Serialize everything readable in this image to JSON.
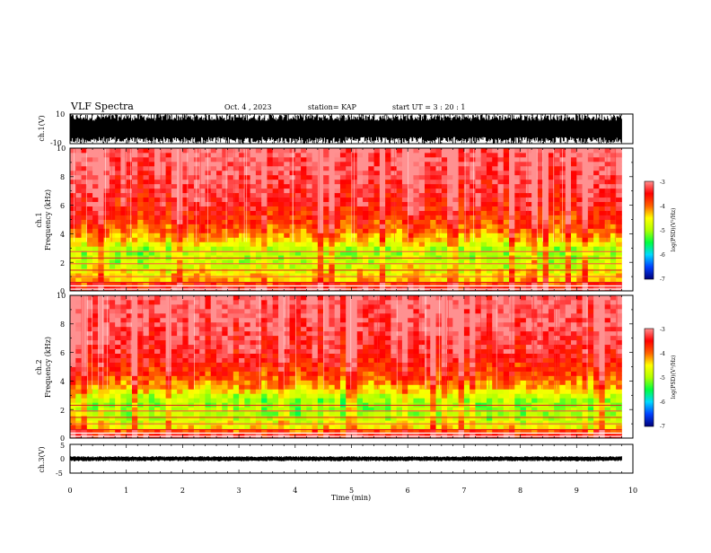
{
  "header": {
    "title": "VLF Spectra",
    "date": "Oct. 4 , 2023",
    "station": "station= KAP",
    "start": "start UT =  3 : 20 : 1"
  },
  "panels": {
    "ch1_wave": {
      "ylabel": "ch.1(V)",
      "yticks": [
        "10",
        "-10"
      ]
    },
    "ch1_spec": {
      "ylabel_top": "ch.1",
      "ylabel_bottom": "Frequency (kHz)",
      "yticks": [
        "10",
        "8",
        "6",
        "4",
        "2",
        "0"
      ]
    },
    "ch2_spec": {
      "ylabel_top": "ch.2",
      "ylabel_bottom": "Frequency (kHz)",
      "yticks": [
        "10",
        "8",
        "6",
        "4",
        "2",
        "0"
      ]
    },
    "ch3_wave": {
      "ylabel": "ch.3(V)",
      "yticks": [
        "5",
        "0",
        "-5"
      ]
    }
  },
  "xaxis": {
    "label": "Time (min)",
    "ticks": [
      "0",
      "1",
      "2",
      "3",
      "4",
      "5",
      "6",
      "7",
      "8",
      "9",
      "10"
    ]
  },
  "colorbar": {
    "label": "log(PSD)(V²/Hz)",
    "ticks": [
      "-3",
      "-4",
      "-5",
      "-6",
      "-7"
    ],
    "colors": [
      "#00007a",
      "#0040ff",
      "#00d8ff",
      "#00ff40",
      "#b0ff00",
      "#ffff00",
      "#ff6000",
      "#ff0000",
      "#ff9090",
      "#ffffff"
    ]
  },
  "chart_data": [
    {
      "type": "line",
      "name": "ch.1 waveform",
      "xlabel": "Time (min)",
      "ylabel": "ch.1(V)",
      "xlim": [
        0,
        10
      ],
      "ylim": [
        -10,
        10
      ],
      "x_range_data": [
        0,
        9.8
      ],
      "envelope": {
        "min_v": -10,
        "max_v": 10
      }
    },
    {
      "type": "heatmap",
      "name": "ch.1 spectrogram",
      "xlabel": "Time (min)",
      "ylabel": "Frequency (kHz)",
      "xlim": [
        0,
        10
      ],
      "ylim": [
        0,
        10
      ],
      "x_range_data": [
        0,
        9.8
      ],
      "colorbar_range": [
        -7,
        -3
      ],
      "frequency_profile_log_psd": [
        {
          "f_khz": 0.25,
          "log_psd": -3.4
        },
        {
          "f_khz": 0.75,
          "log_psd": -4.3
        },
        {
          "f_khz": 1.25,
          "log_psd": -4.5
        },
        {
          "f_khz": 1.75,
          "log_psd": -4.8
        },
        {
          "f_khz": 2.5,
          "log_psd": -5.0
        },
        {
          "f_khz": 3.0,
          "log_psd": -4.9
        },
        {
          "f_khz": 3.5,
          "log_psd": -4.4
        },
        {
          "f_khz": 4.5,
          "log_psd": -3.9
        },
        {
          "f_khz": 6.0,
          "log_psd": -3.5
        },
        {
          "f_khz": 8.0,
          "log_psd": -3.2
        },
        {
          "f_khz": 10.0,
          "log_psd": -3.1
        }
      ],
      "lines_khz": [
        0.6,
        1.0,
        1.45,
        1.9,
        2.3,
        2.75
      ]
    },
    {
      "type": "heatmap",
      "name": "ch.2 spectrogram",
      "xlabel": "Time (min)",
      "ylabel": "Frequency (kHz)",
      "xlim": [
        0,
        10
      ],
      "ylim": [
        0,
        10
      ],
      "x_range_data": [
        0,
        9.8
      ],
      "colorbar_range": [
        -7,
        -3
      ],
      "frequency_profile_log_psd": [
        {
          "f_khz": 0.25,
          "log_psd": -3.4
        },
        {
          "f_khz": 0.75,
          "log_psd": -4.5
        },
        {
          "f_khz": 1.25,
          "log_psd": -4.8
        },
        {
          "f_khz": 1.75,
          "log_psd": -5.0
        },
        {
          "f_khz": 2.5,
          "log_psd": -5.1
        },
        {
          "f_khz": 3.0,
          "log_psd": -4.8
        },
        {
          "f_khz": 3.5,
          "log_psd": -4.3
        },
        {
          "f_khz": 4.5,
          "log_psd": -3.8
        },
        {
          "f_khz": 6.0,
          "log_psd": -3.4
        },
        {
          "f_khz": 8.0,
          "log_psd": -3.2
        },
        {
          "f_khz": 10.0,
          "log_psd": -3.1
        }
      ],
      "lines_khz": [
        0.6,
        1.0,
        1.45,
        1.9,
        2.3
      ]
    },
    {
      "type": "line",
      "name": "ch.3 waveform",
      "xlabel": "Time (min)",
      "ylabel": "ch.3(V)",
      "xlim": [
        0,
        10
      ],
      "ylim": [
        -5,
        5
      ],
      "x_range_data": [
        0,
        9.8
      ],
      "envelope": {
        "min_v": -0.9,
        "max_v": 0.9
      }
    }
  ]
}
